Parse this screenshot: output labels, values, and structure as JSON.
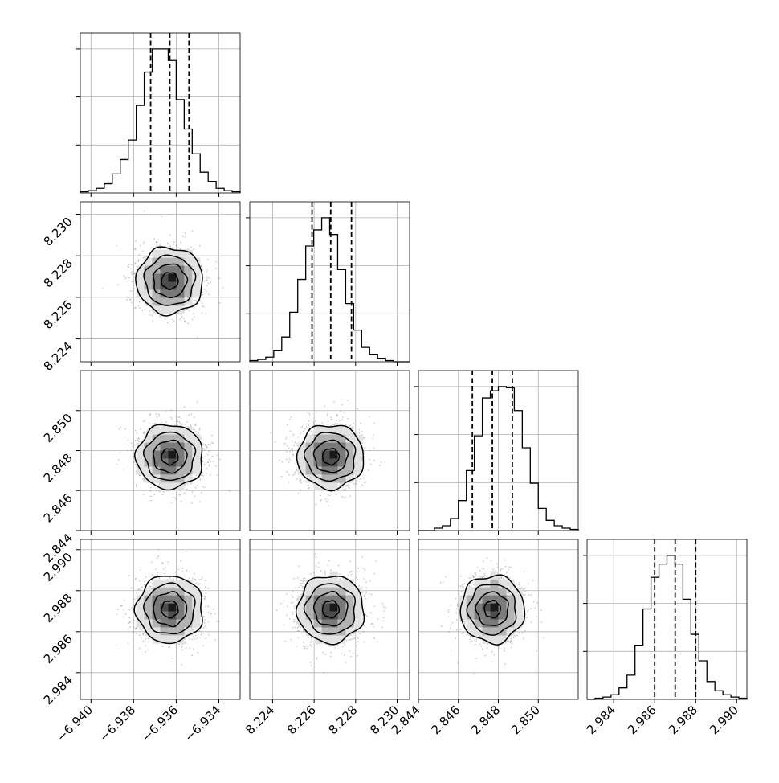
{
  "chart_data": {
    "type": "corner",
    "grid": true,
    "parameters": [
      {
        "range": [
          -6.9405,
          -6.933
        ],
        "ticks": [
          -6.94,
          -6.938,
          -6.936,
          -6.934
        ],
        "tick_labels": [
          "−6.940",
          "−6.938",
          "−6.936",
          "−6.934"
        ],
        "quantiles": [
          -6.9372,
          -6.9363,
          -6.9354
        ],
        "hist_counts": [
          2,
          4,
          8,
          16,
          33,
          58,
          92,
          152,
          210,
          250,
          250,
          230,
          162,
          111,
          68,
          36,
          20,
          8,
          4,
          2
        ]
      },
      {
        "range": [
          8.2229,
          8.2306
        ],
        "ticks": [
          8.224,
          8.226,
          8.228,
          8.23
        ],
        "tick_labels": [
          "8.224",
          "8.226",
          "8.228",
          "8.230"
        ],
        "quantiles": [
          8.2259,
          8.2268,
          8.2278
        ],
        "hist_counts": [
          2,
          4,
          8,
          20,
          43,
          86,
          143,
          201,
          229,
          250,
          221,
          160,
          101,
          55,
          25,
          13,
          6,
          2,
          0,
          0
        ]
      },
      {
        "range": [
          2.844,
          2.852
        ],
        "ticks": [
          2.844,
          2.846,
          2.848,
          2.85
        ],
        "tick_labels": [
          "2.844",
          "2.846",
          "2.848",
          "2.850"
        ],
        "quantiles": [
          2.8467,
          2.8477,
          2.8487
        ],
        "hist_counts": [
          0,
          0,
          4,
          8,
          20,
          50,
          100,
          158,
          221,
          233,
          240,
          238,
          200,
          138,
          79,
          37,
          17,
          8,
          4,
          2
        ]
      },
      {
        "range": [
          2.9827,
          2.9905
        ],
        "ticks": [
          2.984,
          2.986,
          2.988,
          2.99
        ],
        "tick_labels": [
          "2.984",
          "2.986",
          "2.988",
          "2.990"
        ],
        "quantiles": [
          2.986,
          2.987,
          2.988
        ],
        "hist_counts": [
          0,
          2,
          4,
          8,
          20,
          42,
          94,
          157,
          212,
          235,
          250,
          235,
          174,
          113,
          67,
          31,
          15,
          8,
          4,
          2
        ]
      }
    ],
    "correlations": [
      {
        "x": 0,
        "y": 1,
        "center": [
          -6.9363,
          8.2268
        ],
        "sigma": [
          0.00078,
          0.0008
        ],
        "rho": 0.0
      },
      {
        "x": 0,
        "y": 2,
        "center": [
          -6.9363,
          2.8477
        ],
        "sigma": [
          0.00078,
          0.0008
        ],
        "rho": 0.0
      },
      {
        "x": 1,
        "y": 2,
        "center": [
          8.2268,
          2.8477
        ],
        "sigma": [
          0.0008,
          0.0008
        ],
        "rho": 0.0
      },
      {
        "x": 0,
        "y": 3,
        "center": [
          -6.9363,
          2.9871
        ],
        "sigma": [
          0.00078,
          0.00082
        ],
        "rho": 0.0
      },
      {
        "x": 1,
        "y": 3,
        "center": [
          8.2268,
          2.9871
        ],
        "sigma": [
          0.0008,
          0.00082
        ],
        "rho": 0.0
      },
      {
        "x": 2,
        "y": 3,
        "center": [
          2.8477,
          2.9871
        ],
        "sigma": [
          0.0008,
          0.00082
        ],
        "rho": 0.0
      }
    ],
    "contour_levels_sigma": [
      0.5,
      1.0,
      1.5,
      2.0
    ]
  }
}
